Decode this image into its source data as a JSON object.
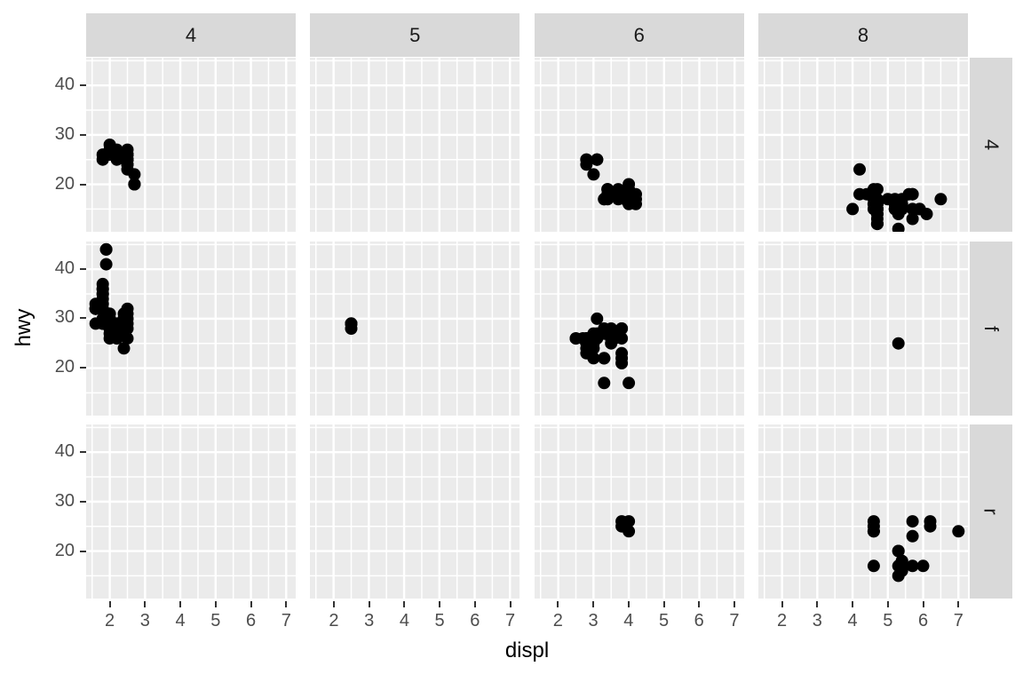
{
  "chart_data": {
    "type": "scatter",
    "xlabel": "displ",
    "ylabel": "hwy",
    "facet": {
      "col_labels": [
        "4",
        "5",
        "6",
        "8"
      ],
      "row_labels": [
        "4",
        "f",
        "r"
      ]
    },
    "x_ticks": [
      2,
      3,
      4,
      5,
      6,
      7
    ],
    "y_ticks": [
      20,
      30,
      40
    ],
    "x_minor": [
      1.5,
      2.5,
      3.5,
      4.5,
      5.5,
      6.5
    ],
    "y_minor": [
      15,
      25,
      35,
      45
    ],
    "x_domain": [
      1.33,
      7.27
    ],
    "y_domain": [
      10.4,
      45.6
    ],
    "grid": true,
    "legend": "none",
    "point_radius_px": 7,
    "colors": {
      "background": "#FFFFFF",
      "panel_bg": "#EBEBEB",
      "strip_bg": "#D9D9D9",
      "grid": "#FFFFFF",
      "point": "#000000",
      "axis_text": "#4D4D4D",
      "strip_text": "#1A1A1A",
      "tick_mark": "#333333",
      "title": "#000000"
    },
    "panels": [
      {
        "row": "4",
        "col": "4",
        "points": [
          [
            1.8,
            26
          ],
          [
            1.8,
            25
          ],
          [
            2.0,
            28
          ],
          [
            2.0,
            27
          ],
          [
            2.0,
            26
          ],
          [
            2.2,
            26
          ],
          [
            2.2,
            25
          ],
          [
            2.2,
            27
          ],
          [
            2.5,
            25
          ],
          [
            2.5,
            25
          ],
          [
            2.5,
            25
          ],
          [
            2.5,
            26
          ],
          [
            2.5,
            27
          ],
          [
            2.5,
            23
          ],
          [
            2.5,
            24
          ],
          [
            2.5,
            25
          ],
          [
            2.5,
            26
          ],
          [
            2.5,
            26
          ],
          [
            2.5,
            24
          ],
          [
            2.7,
            20
          ],
          [
            2.7,
            20
          ],
          [
            2.7,
            22
          ],
          [
            2.7,
            20
          ]
        ]
      },
      {
        "row": "4",
        "col": "5",
        "points": []
      },
      {
        "row": "4",
        "col": "6",
        "points": [
          [
            2.8,
            25
          ],
          [
            2.8,
            25
          ],
          [
            2.8,
            24
          ],
          [
            3.1,
            25
          ],
          [
            3.1,
            25
          ],
          [
            3.1,
            25
          ],
          [
            3.0,
            22
          ],
          [
            3.3,
            17
          ],
          [
            3.4,
            19
          ],
          [
            3.4,
            18
          ],
          [
            3.4,
            17
          ],
          [
            3.4,
            19
          ],
          [
            3.7,
            19
          ],
          [
            3.7,
            18
          ],
          [
            3.7,
            17
          ],
          [
            3.9,
            17
          ],
          [
            3.9,
            17
          ],
          [
            3.9,
            18
          ],
          [
            3.9,
            17
          ],
          [
            4.0,
            17
          ],
          [
            4.0,
            17
          ],
          [
            4.0,
            18
          ],
          [
            4.0,
            18
          ],
          [
            4.0,
            17
          ],
          [
            4.0,
            20
          ],
          [
            4.0,
            16
          ],
          [
            4.0,
            19
          ],
          [
            4.0,
            18
          ],
          [
            4.2,
            17
          ],
          [
            4.2,
            16
          ],
          [
            4.2,
            18
          ],
          [
            3.3,
            17
          ]
        ]
      },
      {
        "row": "4",
        "col": "8",
        "points": [
          [
            4.2,
            23
          ],
          [
            4.0,
            15
          ],
          [
            4.2,
            18
          ],
          [
            4.4,
            18
          ],
          [
            4.6,
            16
          ],
          [
            5.3,
            14
          ],
          [
            5.3,
            11
          ],
          [
            5.7,
            15
          ],
          [
            6.5,
            17
          ],
          [
            4.7,
            15
          ],
          [
            4.7,
            15
          ],
          [
            4.7,
            12
          ],
          [
            5.2,
            17
          ],
          [
            5.2,
            15
          ],
          [
            4.7,
            16
          ],
          [
            4.7,
            12
          ],
          [
            4.7,
            16
          ],
          [
            5.2,
            16
          ],
          [
            5.9,
            15
          ],
          [
            4.7,
            16
          ],
          [
            4.7,
            12
          ],
          [
            4.7,
            15
          ],
          [
            4.7,
            13
          ],
          [
            4.7,
            12
          ],
          [
            5.2,
            16
          ],
          [
            5.2,
            15
          ],
          [
            5.7,
            13
          ],
          [
            5.9,
            15
          ],
          [
            4.6,
            16
          ],
          [
            4.6,
            15
          ],
          [
            4.6,
            17
          ],
          [
            5.4,
            15
          ],
          [
            5.4,
            17
          ],
          [
            4.7,
            19
          ],
          [
            4.7,
            14
          ],
          [
            4.7,
            14
          ],
          [
            5.7,
            18
          ],
          [
            6.1,
            14
          ],
          [
            4.6,
            19
          ],
          [
            5.0,
            17
          ],
          [
            5.6,
            18
          ],
          [
            4.7,
            17
          ],
          [
            4.7,
            15
          ],
          [
            5.7,
            18
          ],
          [
            4.7,
            16
          ],
          [
            4.7,
            15
          ],
          [
            5.2,
            15
          ],
          [
            5.4,
            16
          ]
        ]
      },
      {
        "row": "f",
        "col": "4",
        "points": [
          [
            1.6,
            33
          ],
          [
            1.6,
            32
          ],
          [
            1.6,
            32
          ],
          [
            1.6,
            29
          ],
          [
            1.6,
            32
          ],
          [
            1.8,
            34
          ],
          [
            1.8,
            36
          ],
          [
            1.8,
            36
          ],
          [
            2.0,
            29
          ],
          [
            1.8,
            30
          ],
          [
            1.8,
            33
          ],
          [
            1.8,
            35
          ],
          [
            1.8,
            35
          ],
          [
            1.8,
            37
          ],
          [
            1.9,
            44
          ],
          [
            1.9,
            44
          ],
          [
            1.9,
            41
          ],
          [
            1.8,
            29
          ],
          [
            1.8,
            29
          ],
          [
            1.8,
            29
          ],
          [
            1.8,
            29
          ],
          [
            1.8,
            32
          ],
          [
            2.0,
            29
          ],
          [
            2.0,
            28
          ],
          [
            2.0,
            29
          ],
          [
            2.0,
            28
          ],
          [
            2.0,
            29
          ],
          [
            2.0,
            31
          ],
          [
            2.0,
            30
          ],
          [
            2.0,
            28
          ],
          [
            2.0,
            29
          ],
          [
            2.0,
            26
          ],
          [
            2.0,
            27
          ],
          [
            2.0,
            30
          ],
          [
            2.0,
            29
          ],
          [
            2.2,
            27
          ],
          [
            2.2,
            27
          ],
          [
            2.2,
            26
          ],
          [
            2.2,
            27
          ],
          [
            2.2,
            29
          ],
          [
            2.2,
            28
          ],
          [
            2.4,
            30
          ],
          [
            2.4,
            28
          ],
          [
            2.4,
            30
          ],
          [
            2.4,
            31
          ],
          [
            2.4,
            30
          ],
          [
            2.4,
            29
          ],
          [
            2.4,
            29
          ],
          [
            2.4,
            27
          ],
          [
            2.4,
            24
          ],
          [
            2.4,
            29
          ],
          [
            2.4,
            28
          ],
          [
            2.5,
            31
          ],
          [
            2.5,
            32
          ],
          [
            2.5,
            30
          ],
          [
            2.5,
            29
          ],
          [
            2.5,
            28
          ],
          [
            2.5,
            26
          ]
        ]
      },
      {
        "row": "f",
        "col": "5",
        "points": [
          [
            2.5,
            29
          ],
          [
            2.5,
            29
          ],
          [
            2.5,
            28
          ],
          [
            2.5,
            29
          ]
        ]
      },
      {
        "row": "f",
        "col": "6",
        "points": [
          [
            2.8,
            26
          ],
          [
            2.8,
            26
          ],
          [
            3.1,
            27
          ],
          [
            2.8,
            26
          ],
          [
            2.8,
            26
          ],
          [
            2.8,
            24
          ],
          [
            2.8,
            23
          ],
          [
            2.7,
            26
          ],
          [
            2.7,
            26
          ],
          [
            2.5,
            26
          ],
          [
            2.5,
            26
          ],
          [
            3.3,
            28
          ],
          [
            3.0,
            26
          ],
          [
            3.0,
            25
          ],
          [
            3.5,
            25
          ],
          [
            3.5,
            26
          ],
          [
            3.5,
            27
          ],
          [
            3.0,
            26
          ],
          [
            3.0,
            26
          ],
          [
            3.3,
            27
          ],
          [
            3.0,
            26
          ],
          [
            3.0,
            27
          ],
          [
            3.3,
            27
          ],
          [
            3.1,
            26
          ],
          [
            3.6,
            26
          ],
          [
            3.1,
            30
          ],
          [
            3.8,
            28
          ],
          [
            3.8,
            28
          ],
          [
            3.8,
            26
          ],
          [
            3.0,
            24
          ],
          [
            3.3,
            22
          ],
          [
            3.3,
            22
          ],
          [
            3.3,
            22
          ],
          [
            3.8,
            22
          ],
          [
            3.8,
            21
          ],
          [
            3.8,
            23
          ],
          [
            4.0,
            17
          ],
          [
            3.3,
            17
          ],
          [
            3.5,
            28
          ],
          [
            3.5,
            26
          ],
          [
            2.8,
            25
          ],
          [
            3.0,
            22
          ],
          [
            3.6,
            27
          ]
        ]
      },
      {
        "row": "f",
        "col": "8",
        "points": [
          [
            5.3,
            25
          ]
        ]
      },
      {
        "row": "r",
        "col": "4",
        "points": []
      },
      {
        "row": "r",
        "col": "5",
        "points": []
      },
      {
        "row": "r",
        "col": "6",
        "points": [
          [
            3.8,
            26
          ],
          [
            3.8,
            25
          ],
          [
            4.0,
            26
          ],
          [
            4.0,
            24
          ]
        ]
      },
      {
        "row": "r",
        "col": "8",
        "points": [
          [
            5.3,
            20
          ],
          [
            5.3,
            20
          ],
          [
            5.3,
            15
          ],
          [
            5.7,
            17
          ],
          [
            6.0,
            17
          ],
          [
            5.7,
            26
          ],
          [
            5.7,
            23
          ],
          [
            6.2,
            26
          ],
          [
            6.2,
            25
          ],
          [
            7.0,
            24
          ],
          [
            4.6,
            17
          ],
          [
            5.4,
            17
          ],
          [
            5.4,
            18
          ],
          [
            5.4,
            17
          ],
          [
            5.4,
            16
          ],
          [
            5.4,
            18
          ],
          [
            4.6,
            26
          ],
          [
            4.6,
            25
          ],
          [
            4.6,
            24
          ],
          [
            4.6,
            24
          ],
          [
            5.3,
            17
          ]
        ]
      }
    ]
  },
  "titles": {
    "x": "displ",
    "y": "hwy"
  }
}
